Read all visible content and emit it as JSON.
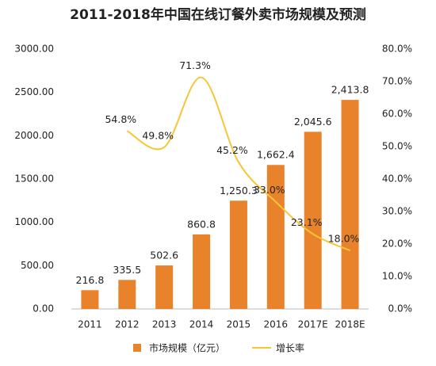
{
  "chart_data": {
    "type": "bar-line",
    "title": "2011-2018年中国在线订餐外卖市场规模及预测",
    "categories": [
      "2011",
      "2012",
      "2013",
      "2014",
      "2015",
      "2016",
      "2017E",
      "2018E"
    ],
    "series": [
      {
        "name": "市场规模（亿元）",
        "color": "#e8832c",
        "type": "bar",
        "values": [
          216.8,
          335.5,
          502.6,
          860.8,
          1250.3,
          1662.4,
          2045.6,
          2413.8
        ],
        "value_labels": [
          "216.8",
          "335.5",
          "502.6",
          "860.8",
          "1,250.3",
          "1,662.4",
          "2,045.6",
          "2,413.8"
        ]
      },
      {
        "name": "增长率",
        "color": "#f6c636",
        "type": "line",
        "axis": "y2",
        "values": [
          null,
          54.8,
          49.8,
          71.3,
          45.2,
          33.0,
          23.1,
          18.0
        ],
        "value_labels": [
          null,
          "54.8%",
          "49.8%",
          "71.3%",
          "45.2%",
          "33.0%",
          "23.1%",
          "18.0%"
        ]
      }
    ],
    "ylim": [
      0,
      3000
    ],
    "yticks": [
      {
        "value": 0,
        "label": "0.00"
      },
      {
        "value": 500,
        "label": "500.00"
      },
      {
        "value": 1000,
        "label": "1000.00"
      },
      {
        "value": 1500,
        "label": "1500.00"
      },
      {
        "value": 2000,
        "label": "2000.00"
      },
      {
        "value": 2500,
        "label": "2500.00"
      },
      {
        "value": 3000,
        "label": "3000.00"
      }
    ],
    "y2lim": [
      0,
      80
    ],
    "y2ticks": [
      {
        "value": 0,
        "label": "0.0%"
      },
      {
        "value": 10,
        "label": "10.0%"
      },
      {
        "value": 20,
        "label": "20.0%"
      },
      {
        "value": 30,
        "label": "30.0%"
      },
      {
        "value": 40,
        "label": "40.0%"
      },
      {
        "value": 50,
        "label": "50.0%"
      },
      {
        "value": 60,
        "label": "60.0%"
      },
      {
        "value": 70,
        "label": "70.0%"
      },
      {
        "value": 80,
        "label": "80.0%"
      }
    ],
    "grid": false,
    "legend": "bottom"
  }
}
